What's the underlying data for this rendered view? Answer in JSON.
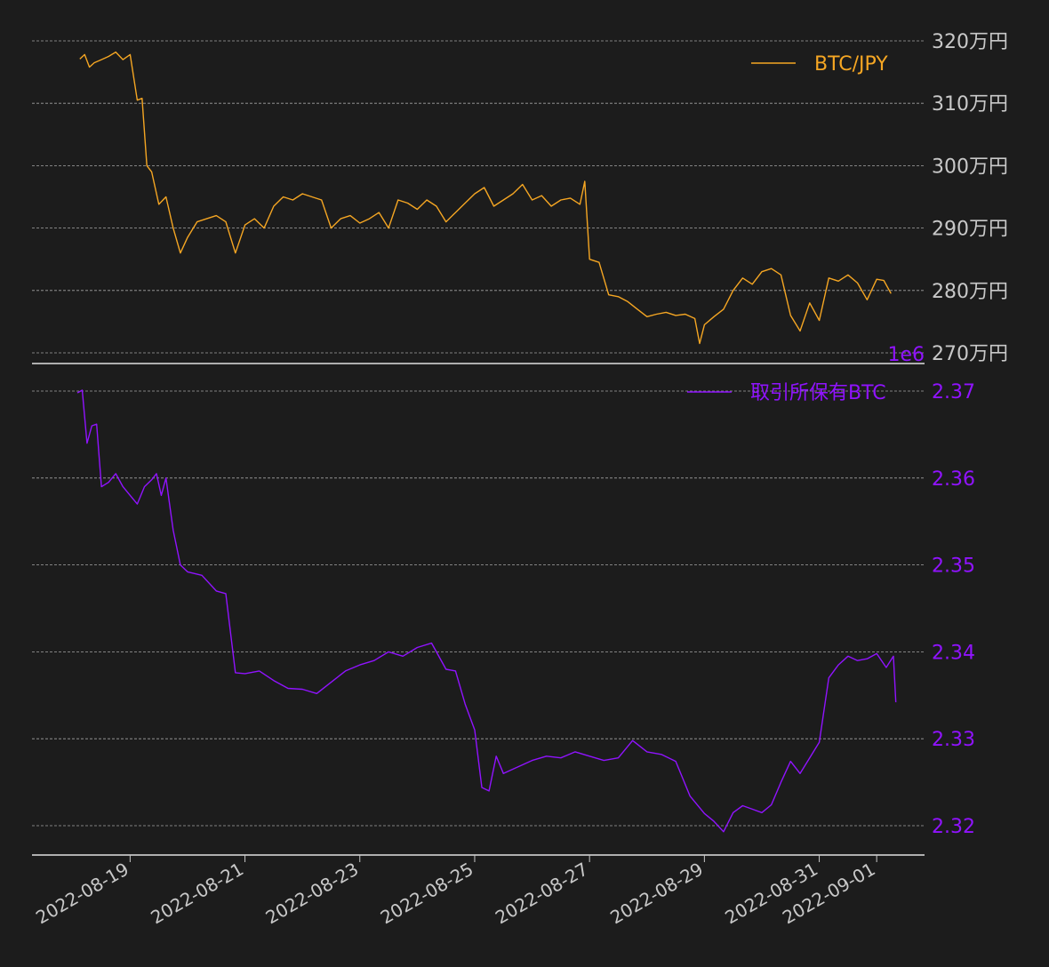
{
  "colors": {
    "background": "#1c1c1c",
    "price_line": "#f5a623",
    "holdings_line": "#9013fe",
    "axis_text": "#c8c8c8",
    "grid": "#bbbbbb",
    "spine": "#e0e0e0"
  },
  "chart_data": [
    {
      "type": "line",
      "name": "top-price-panel",
      "grid": "horizontal dashed",
      "legend_position": "top-right",
      "ylim": [
        2700000,
        3200000
      ],
      "y_ticks": [
        3200000,
        3100000,
        3000000,
        2900000,
        2800000,
        2700000
      ],
      "y_tick_labels": [
        "320万円",
        "310万円",
        "300万円",
        "290万円",
        "280万円",
        "270万円"
      ],
      "series": [
        {
          "name": "BTC/JPY",
          "x": [
            "2022-08-18T03:00",
            "2022-08-18T05:00",
            "2022-08-18T07:00",
            "2022-08-18T09:00",
            "2022-08-18T12:00",
            "2022-08-18T15:00",
            "2022-08-18T18:00",
            "2022-08-18T21:00",
            "2022-08-19T00:00",
            "2022-08-19T03:00",
            "2022-08-19T05:00",
            "2022-08-19T07:00",
            "2022-08-19T09:00",
            "2022-08-19T12:00",
            "2022-08-19T15:00",
            "2022-08-19T18:00",
            "2022-08-19T21:00",
            "2022-08-20T00:00",
            "2022-08-20T04:00",
            "2022-08-20T08:00",
            "2022-08-20T12:00",
            "2022-08-20T16:00",
            "2022-08-20T20:00",
            "2022-08-21T00:00",
            "2022-08-21T04:00",
            "2022-08-21T08:00",
            "2022-08-21T12:00",
            "2022-08-21T16:00",
            "2022-08-21T20:00",
            "2022-08-22T00:00",
            "2022-08-22T04:00",
            "2022-08-22T08:00",
            "2022-08-22T12:00",
            "2022-08-22T16:00",
            "2022-08-22T20:00",
            "2022-08-23T00:00",
            "2022-08-23T04:00",
            "2022-08-23T08:00",
            "2022-08-23T12:00",
            "2022-08-23T16:00",
            "2022-08-23T20:00",
            "2022-08-24T00:00",
            "2022-08-24T04:00",
            "2022-08-24T08:00",
            "2022-08-24T12:00",
            "2022-08-24T16:00",
            "2022-08-24T20:00",
            "2022-08-25T00:00",
            "2022-08-25T04:00",
            "2022-08-25T08:00",
            "2022-08-25T12:00",
            "2022-08-25T16:00",
            "2022-08-25T20:00",
            "2022-08-26T00:00",
            "2022-08-26T04:00",
            "2022-08-26T08:00",
            "2022-08-26T12:00",
            "2022-08-26T16:00",
            "2022-08-26T20:00",
            "2022-08-26T22:00",
            "2022-08-27T00:00",
            "2022-08-27T04:00",
            "2022-08-27T08:00",
            "2022-08-27T12:00",
            "2022-08-27T16:00",
            "2022-08-27T20:00",
            "2022-08-28T00:00",
            "2022-08-28T04:00",
            "2022-08-28T08:00",
            "2022-08-28T12:00",
            "2022-08-28T16:00",
            "2022-08-28T20:00",
            "2022-08-28T22:00",
            "2022-08-29T00:00",
            "2022-08-29T04:00",
            "2022-08-29T08:00",
            "2022-08-29T12:00",
            "2022-08-29T16:00",
            "2022-08-29T20:00",
            "2022-08-30T00:00",
            "2022-08-30T04:00",
            "2022-08-30T08:00",
            "2022-08-30T12:00",
            "2022-08-30T16:00",
            "2022-08-30T20:00",
            "2022-08-31T00:00",
            "2022-08-31T04:00",
            "2022-08-31T08:00",
            "2022-08-31T12:00",
            "2022-08-31T16:00",
            "2022-08-31T20:00",
            "2022-09-01T00:00",
            "2022-09-01T03:00",
            "2022-09-01T06:00"
          ],
          "values": [
            3171000,
            3178000,
            3158000,
            3165000,
            3170000,
            3175000,
            3182000,
            3170000,
            3178000,
            3105000,
            3108000,
            3000000,
            2990000,
            2938000,
            2950000,
            2900000,
            2860000,
            2885000,
            2910000,
            2915000,
            2920000,
            2910000,
            2860000,
            2905000,
            2915000,
            2900000,
            2935000,
            2950000,
            2945000,
            2955000,
            2950000,
            2945000,
            2900000,
            2915000,
            2920000,
            2908000,
            2915000,
            2925000,
            2900000,
            2945000,
            2940000,
            2930000,
            2945000,
            2935000,
            2910000,
            2925000,
            2940000,
            2955000,
            2965000,
            2935000,
            2945000,
            2955000,
            2970000,
            2945000,
            2952000,
            2935000,
            2945000,
            2948000,
            2938000,
            2975000,
            2850000,
            2845000,
            2793000,
            2790000,
            2782000,
            2770000,
            2758000,
            2762000,
            2765000,
            2760000,
            2762000,
            2755000,
            2715000,
            2745000,
            2758000,
            2770000,
            2800000,
            2820000,
            2810000,
            2830000,
            2835000,
            2825000,
            2760000,
            2735000,
            2780000,
            2752000,
            2820000,
            2815000,
            2825000,
            2812000,
            2785000,
            2818000,
            2816000,
            2795000
          ]
        }
      ]
    },
    {
      "type": "line",
      "name": "bottom-holdings-panel",
      "grid": "horizontal dashed",
      "legend_position": "top-right",
      "offset_text": "1e6",
      "ylim": [
        2316500,
        2370000
      ],
      "y_ticks": [
        2370000,
        2360000,
        2350000,
        2340000,
        2330000,
        2320000
      ],
      "y_tick_labels": [
        "2.37",
        "2.36",
        "2.35",
        "2.34",
        "2.33",
        "2.32"
      ],
      "x_tick_dates": [
        "2022-08-19T00:00",
        "2022-08-21T00:00",
        "2022-08-23T00:00",
        "2022-08-25T00:00",
        "2022-08-27T00:00",
        "2022-08-29T00:00",
        "2022-08-31T00:00",
        "2022-09-01T00:00"
      ],
      "x_tick_labels": [
        "2022-08-19",
        "2022-08-21",
        "2022-08-23",
        "2022-08-25",
        "2022-08-27",
        "2022-08-29",
        "2022-08-31",
        "2022-09-01"
      ],
      "series": [
        {
          "name": "取引所保有BTC",
          "x": [
            "2022-08-18T02:00",
            "2022-08-18T04:00",
            "2022-08-18T06:00",
            "2022-08-18T08:00",
            "2022-08-18T10:00",
            "2022-08-18T12:00",
            "2022-08-18T15:00",
            "2022-08-18T18:00",
            "2022-08-18T21:00",
            "2022-08-19T00:00",
            "2022-08-19T03:00",
            "2022-08-19T06:00",
            "2022-08-19T09:00",
            "2022-08-19T11:00",
            "2022-08-19T13:00",
            "2022-08-19T15:00",
            "2022-08-19T18:00",
            "2022-08-19T21:00",
            "2022-08-20T00:00",
            "2022-08-20T06:00",
            "2022-08-20T12:00",
            "2022-08-20T16:00",
            "2022-08-20T20:00",
            "2022-08-21T00:00",
            "2022-08-21T06:00",
            "2022-08-21T12:00",
            "2022-08-21T18:00",
            "2022-08-22T00:00",
            "2022-08-22T06:00",
            "2022-08-22T12:00",
            "2022-08-22T18:00",
            "2022-08-23T00:00",
            "2022-08-23T06:00",
            "2022-08-23T12:00",
            "2022-08-23T18:00",
            "2022-08-24T00:00",
            "2022-08-24T06:00",
            "2022-08-24T12:00",
            "2022-08-24T16:00",
            "2022-08-24T20:00",
            "2022-08-25T00:00",
            "2022-08-25T03:00",
            "2022-08-25T06:00",
            "2022-08-25T09:00",
            "2022-08-25T12:00",
            "2022-08-25T16:00",
            "2022-08-25T20:00",
            "2022-08-26T00:00",
            "2022-08-26T06:00",
            "2022-08-26T12:00",
            "2022-08-26T18:00",
            "2022-08-27T00:00",
            "2022-08-27T06:00",
            "2022-08-27T12:00",
            "2022-08-27T18:00",
            "2022-08-28T00:00",
            "2022-08-28T06:00",
            "2022-08-28T12:00",
            "2022-08-28T18:00",
            "2022-08-29T00:00",
            "2022-08-29T04:00",
            "2022-08-29T08:00",
            "2022-08-29T12:00",
            "2022-08-29T16:00",
            "2022-08-29T20:00",
            "2022-08-30T00:00",
            "2022-08-30T04:00",
            "2022-08-30T08:00",
            "2022-08-30T12:00",
            "2022-08-30T16:00",
            "2022-08-30T20:00",
            "2022-08-31T00:00",
            "2022-08-31T04:00",
            "2022-08-31T08:00",
            "2022-08-31T12:00",
            "2022-08-31T16:00",
            "2022-08-31T20:00",
            "2022-09-01T00:00",
            "2022-09-01T04:00",
            "2022-09-01T07:00",
            "2022-09-01T08:00"
          ],
          "values": [
            2369800,
            2370100,
            2364000,
            2366000,
            2366200,
            2359000,
            2359500,
            2360500,
            2359000,
            2358000,
            2357000,
            2359000,
            2359800,
            2360500,
            2358000,
            2360000,
            2354000,
            2350000,
            2349200,
            2348800,
            2347000,
            2346700,
            2337600,
            2337500,
            2337800,
            2336700,
            2335800,
            2335700,
            2335200,
            2336500,
            2337800,
            2338500,
            2339000,
            2340000,
            2339500,
            2340500,
            2341000,
            2338000,
            2337800,
            2334000,
            2331000,
            2324400,
            2324000,
            2328000,
            2326000,
            2326500,
            2327000,
            2327500,
            2328000,
            2327800,
            2328500,
            2328000,
            2327500,
            2327800,
            2329800,
            2328500,
            2328200,
            2327400,
            2323400,
            2321400,
            2320500,
            2319300,
            2321500,
            2322300,
            2321900,
            2321500,
            2322400,
            2325000,
            2327400,
            2326000,
            2327800,
            2329600,
            2337000,
            2338500,
            2339500,
            2339000,
            2339200,
            2339800,
            2338200,
            2339500,
            2334200
          ]
        }
      ]
    }
  ]
}
